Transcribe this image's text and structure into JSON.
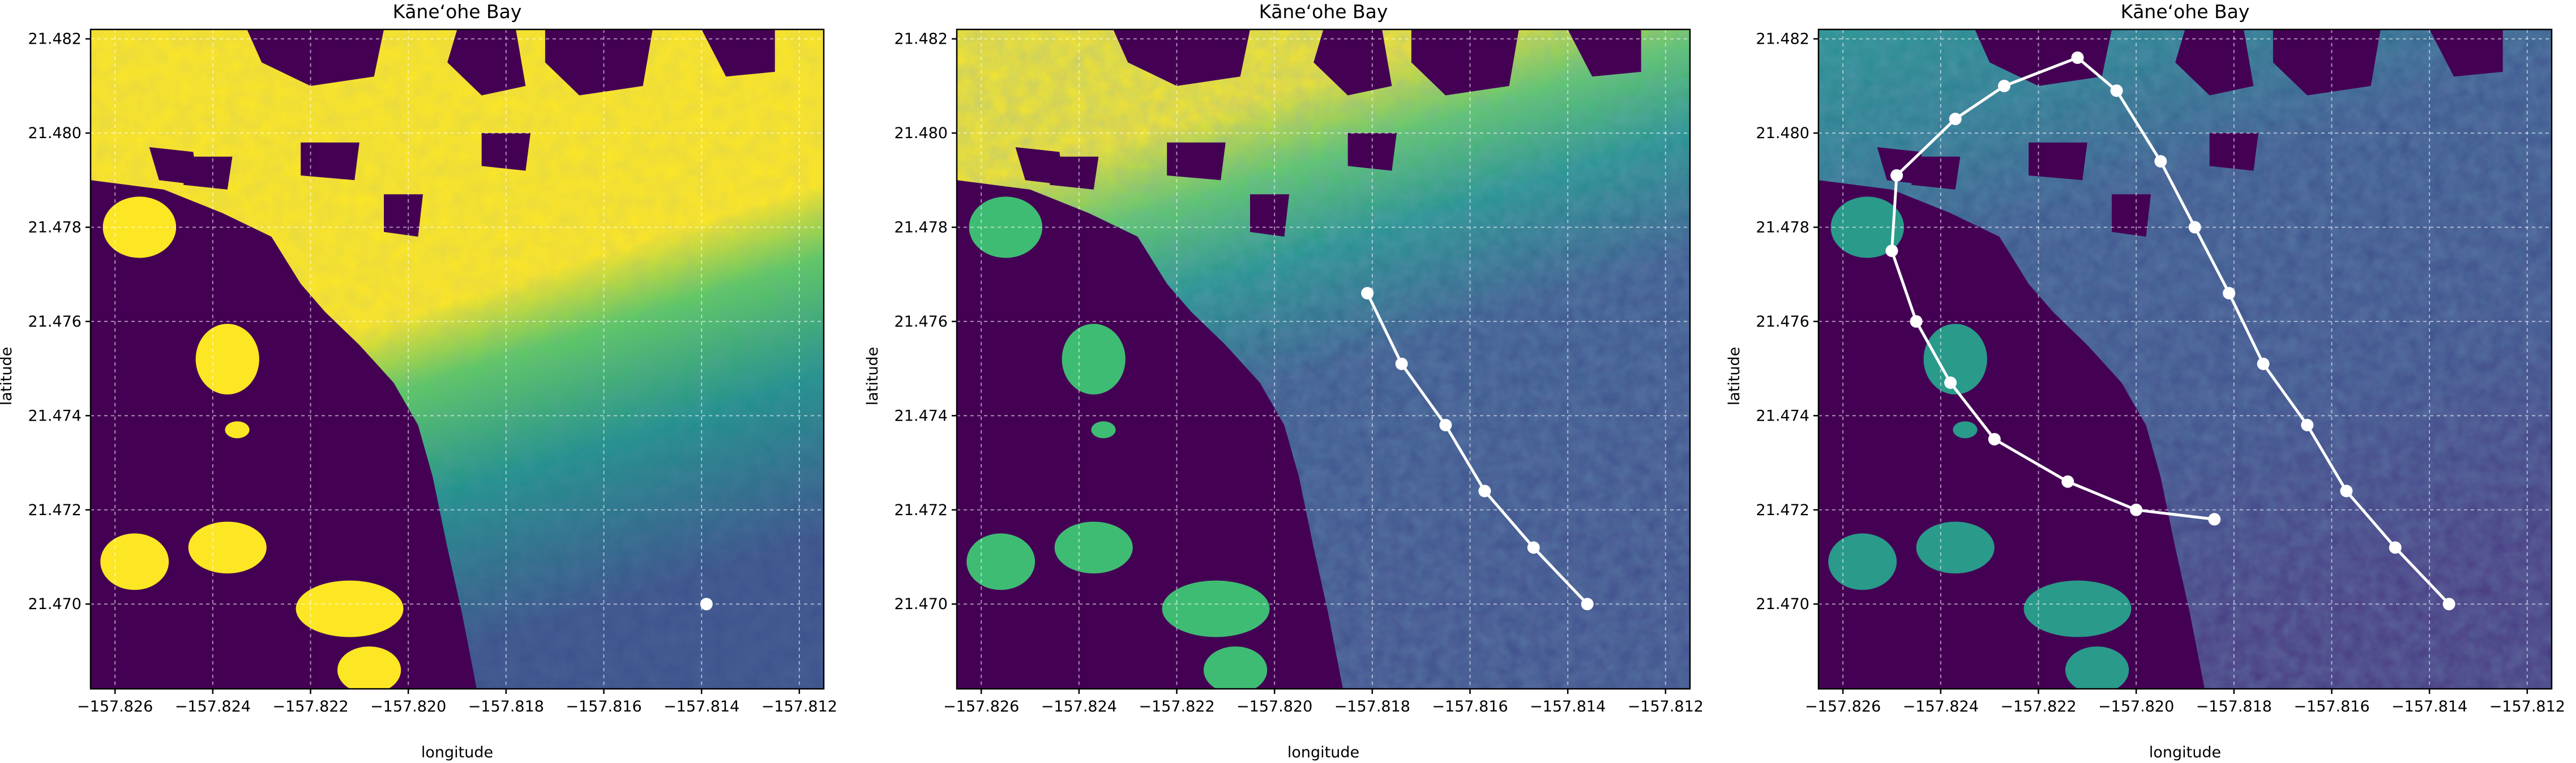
{
  "figure": {
    "panels": [
      {
        "title": "Kāne‘ohe Bay",
        "xlabel": "longitude",
        "ylabel": "latitude",
        "colormap": "saturated"
      },
      {
        "title": "Kāne‘ohe Bay",
        "xlabel": "longitude",
        "ylabel": "latitude",
        "colormap": "mid"
      },
      {
        "title": "Kāne‘ohe Bay",
        "xlabel": "longitude",
        "ylabel": "latitude",
        "colormap": "low"
      }
    ]
  },
  "colors": {
    "land": "#440154",
    "viridis": [
      "#440154",
      "#3b528b",
      "#21918c",
      "#5ec962",
      "#fde725"
    ],
    "track": "#ffffff",
    "grid": "#ffffff"
  },
  "chart_data": [
    {
      "type": "heatmap",
      "title": "Kāne‘ohe Bay",
      "xlabel": "longitude",
      "ylabel": "latitude",
      "xlim": [
        -157.8265,
        -157.8115
      ],
      "ylim": [
        21.4682,
        21.4822
      ],
      "xticks": [
        -157.826,
        -157.824,
        -157.822,
        -157.82,
        -157.818,
        -157.816,
        -157.814,
        -157.812
      ],
      "xtick_labels": [
        "−157.826",
        "−157.824",
        "−157.822",
        "−157.820",
        "−157.818",
        "−157.816",
        "−157.814",
        "−157.812"
      ],
      "yticks": [
        21.47,
        21.472,
        21.474,
        21.476,
        21.478,
        21.48,
        21.482
      ],
      "ytick_labels": [
        "21.470",
        "21.472",
        "21.474",
        "21.476",
        "21.478",
        "21.480",
        "21.482"
      ],
      "grid": true,
      "track": [
        {
          "lon": -157.8139,
          "lat": 21.47
        }
      ]
    },
    {
      "type": "heatmap",
      "title": "Kāne‘ohe Bay",
      "xlabel": "longitude",
      "ylabel": "latitude",
      "xlim": [
        -157.8265,
        -157.8115
      ],
      "ylim": [
        21.4682,
        21.4822
      ],
      "xticks": [
        -157.826,
        -157.824,
        -157.822,
        -157.82,
        -157.818,
        -157.816,
        -157.814,
        -157.812
      ],
      "xtick_labels": [
        "−157.826",
        "−157.824",
        "−157.822",
        "−157.820",
        "−157.818",
        "−157.816",
        "−157.814",
        "−157.812"
      ],
      "yticks": [
        21.47,
        21.472,
        21.474,
        21.476,
        21.478,
        21.48,
        21.482
      ],
      "ytick_labels": [
        "21.470",
        "21.472",
        "21.474",
        "21.476",
        "21.478",
        "21.480",
        "21.482"
      ],
      "grid": true,
      "track": [
        {
          "lon": -157.8181,
          "lat": 21.4766
        },
        {
          "lon": -157.8174,
          "lat": 21.4751
        },
        {
          "lon": -157.8165,
          "lat": 21.4738
        },
        {
          "lon": -157.8157,
          "lat": 21.4724
        },
        {
          "lon": -157.8147,
          "lat": 21.4712
        },
        {
          "lon": -157.8136,
          "lat": 21.47
        }
      ]
    },
    {
      "type": "heatmap",
      "title": "Kāne‘ohe Bay",
      "xlabel": "longitude",
      "ylabel": "latitude",
      "xlim": [
        -157.8265,
        -157.8115
      ],
      "ylim": [
        21.4682,
        21.4822
      ],
      "xticks": [
        -157.826,
        -157.824,
        -157.822,
        -157.82,
        -157.818,
        -157.816,
        -157.814,
        -157.812
      ],
      "xtick_labels": [
        "−157.826",
        "−157.824",
        "−157.822",
        "−157.820",
        "−157.818",
        "−157.816",
        "−157.814",
        "−157.812"
      ],
      "yticks": [
        21.47,
        21.472,
        21.474,
        21.476,
        21.478,
        21.48,
        21.482
      ],
      "ytick_labels": [
        "21.470",
        "21.472",
        "21.474",
        "21.476",
        "21.478",
        "21.480",
        "21.482"
      ],
      "grid": true,
      "track": [
        {
          "lon": -157.8136,
          "lat": 21.47
        },
        {
          "lon": -157.8147,
          "lat": 21.4712
        },
        {
          "lon": -157.8157,
          "lat": 21.4724
        },
        {
          "lon": -157.8165,
          "lat": 21.4738
        },
        {
          "lon": -157.8174,
          "lat": 21.4751
        },
        {
          "lon": -157.8181,
          "lat": 21.4766
        },
        {
          "lon": -157.8188,
          "lat": 21.478
        },
        {
          "lon": -157.8195,
          "lat": 21.4794
        },
        {
          "lon": -157.8204,
          "lat": 21.4809
        },
        {
          "lon": -157.8212,
          "lat": 21.4816
        },
        {
          "lon": -157.8227,
          "lat": 21.481
        },
        {
          "lon": -157.8237,
          "lat": 21.4803
        },
        {
          "lon": -157.8249,
          "lat": 21.4791
        },
        {
          "lon": -157.825,
          "lat": 21.4775
        },
        {
          "lon": -157.8245,
          "lat": 21.476
        },
        {
          "lon": -157.8238,
          "lat": 21.4747
        },
        {
          "lon": -157.8229,
          "lat": 21.4735
        },
        {
          "lon": -157.8214,
          "lat": 21.4726
        },
        {
          "lon": -157.82,
          "lat": 21.472
        },
        {
          "lon": -157.8184,
          "lat": 21.4718
        }
      ]
    }
  ]
}
